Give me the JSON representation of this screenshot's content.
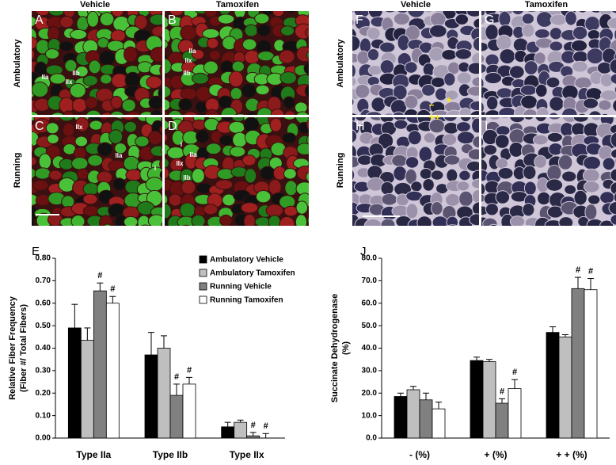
{
  "panels": {
    "left": {
      "columns": [
        "Vehicle",
        "Tamoxifen"
      ],
      "rows": [
        "Ambulatory",
        "Running"
      ],
      "letters": [
        "A",
        "B",
        "C",
        "D"
      ],
      "labels": [
        [
          "IIa",
          "IIb",
          "IIx"
        ],
        [
          "IIx",
          "IIa",
          "IIb"
        ],
        [
          "IIx",
          "IIa",
          "I"
        ],
        [
          "I",
          "IIa",
          "IIx",
          "IIb"
        ]
      ]
    },
    "right": {
      "columns": [
        "Vehicle",
        "Tamoxifen"
      ],
      "rows": [
        "Ambulatory",
        "Running"
      ],
      "letters": [
        "F",
        "G",
        "H",
        "I"
      ],
      "labels": [
        [
          "–",
          "+",
          "++"
        ]
      ]
    }
  },
  "chart_data": [
    {
      "type": "bar",
      "letter": "E",
      "ylabel": [
        "Relative Fiber Frequency",
        "(Fiber #/ Total Fibers)"
      ],
      "categories": [
        "Type IIa",
        "Type IIb",
        "Type IIx"
      ],
      "series": [
        {
          "name": "Ambulatory Vehicle",
          "color": "#000000",
          "values": [
            0.49,
            0.37,
            0.05
          ],
          "errors": [
            0.105,
            0.1,
            0.02
          ]
        },
        {
          "name": "Ambulatory Tamoxifen",
          "color": "#bfbfbf",
          "values": [
            0.435,
            0.4,
            0.07
          ],
          "errors": [
            0.055,
            0.055,
            0.01
          ]
        },
        {
          "name": "Running Vehicle",
          "color": "#808080",
          "values": [
            0.655,
            0.19,
            0.01
          ],
          "errors": [
            0.035,
            0.05,
            0.015
          ]
        },
        {
          "name": "Running Tamoxifen",
          "color": "#ffffff",
          "values": [
            0.6,
            0.24,
            0.0
          ],
          "errors": [
            0.03,
            0.03,
            0.02
          ]
        }
      ],
      "annotations": [
        {
          "text": "#",
          "series": 2,
          "category": 0
        },
        {
          "text": "#",
          "series": 3,
          "category": 0
        },
        {
          "text": "#",
          "series": 2,
          "category": 1
        },
        {
          "text": "#",
          "series": 3,
          "category": 1
        },
        {
          "text": "#",
          "series": 2,
          "category": 2
        },
        {
          "text": "#",
          "series": 3,
          "category": 2
        }
      ],
      "ylim": [
        0,
        0.8
      ],
      "yticks": [
        {
          "value": 0,
          "label": "0.00"
        },
        {
          "value": 0.1,
          "label": "0.10"
        },
        {
          "value": 0.2,
          "label": "0.20"
        },
        {
          "value": 0.3,
          "label": "0.30"
        },
        {
          "value": 0.4,
          "label": "0.40"
        },
        {
          "value": 0.5,
          "label": "0.50"
        },
        {
          "value": 0.6,
          "label": "0.60"
        },
        {
          "value": 0.7,
          "label": "0.70"
        },
        {
          "value": 0.8,
          "label": "0.80"
        }
      ],
      "legend": "upper right"
    },
    {
      "type": "bar",
      "letter": "J",
      "ylabel": [
        "Succinate Dehydrogenase",
        "(%)"
      ],
      "categories": [
        "- (%)",
        "+ (%)",
        "+ + (%)"
      ],
      "series": [
        {
          "name": "Ambulatory Vehicle",
          "color": "#000000",
          "values": [
            18.5,
            34.5,
            47
          ],
          "errors": [
            1.5,
            1.5,
            2.5
          ]
        },
        {
          "name": "Ambulatory Tamoxifen",
          "color": "#bfbfbf",
          "values": [
            21.5,
            34,
            45
          ],
          "errors": [
            1.5,
            1,
            1
          ]
        },
        {
          "name": "Running Vehicle",
          "color": "#808080",
          "values": [
            17,
            15.5,
            66.5
          ],
          "errors": [
            3,
            2,
            5
          ]
        },
        {
          "name": "Running Tamoxifen",
          "color": "#ffffff",
          "values": [
            13,
            22,
            66
          ],
          "errors": [
            3,
            4,
            5
          ]
        }
      ],
      "annotations": [
        {
          "text": "#",
          "series": 2,
          "category": 1
        },
        {
          "text": "#",
          "series": 3,
          "category": 1
        },
        {
          "text": "#",
          "series": 2,
          "category": 2
        },
        {
          "text": "#",
          "series": 3,
          "category": 2
        }
      ],
      "ylim": [
        0,
        80
      ],
      "yticks": [
        {
          "value": 0,
          "label": "0.0"
        },
        {
          "value": 10,
          "label": "10.0"
        },
        {
          "value": 20,
          "label": "20.0"
        },
        {
          "value": 30,
          "label": "30.0"
        },
        {
          "value": 40,
          "label": "40.0"
        },
        {
          "value": 50,
          "label": "50.0"
        },
        {
          "value": 60,
          "label": "60.0"
        },
        {
          "value": 70,
          "label": "70.0"
        },
        {
          "value": 80,
          "label": "80.0"
        }
      ]
    }
  ]
}
